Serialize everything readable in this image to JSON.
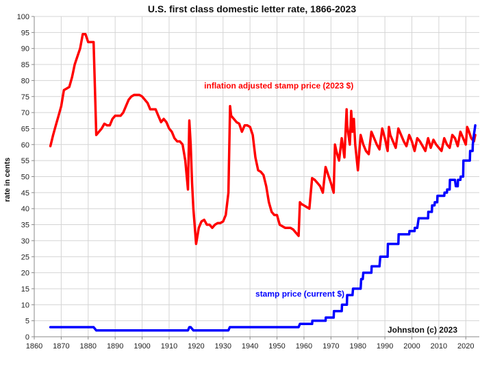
{
  "chart_data": {
    "type": "line",
    "title": "U.S. first class domestic letter rate, 1866-2023",
    "xlabel": "",
    "ylabel": "rate in cents",
    "xlim": [
      1860,
      2025
    ],
    "ylim": [
      0,
      100
    ],
    "xticks": [
      1860,
      1870,
      1880,
      1890,
      1900,
      1910,
      1920,
      1930,
      1940,
      1950,
      1960,
      1970,
      1980,
      1990,
      2000,
      2010,
      2020
    ],
    "yticks": [
      0,
      5,
      10,
      15,
      20,
      25,
      30,
      35,
      40,
      45,
      50,
      55,
      60,
      65,
      70,
      75,
      80,
      85,
      90,
      95,
      100
    ],
    "grid": true,
    "credit": "Johnston (c) 2023",
    "series": [
      {
        "name": "inflation adjusted stamp price (2023 $)",
        "color": "#ff0000",
        "label_anchor": [
          1923,
          77.5
        ],
        "points": [
          [
            1866,
            59.5
          ],
          [
            1867,
            63
          ],
          [
            1868,
            66
          ],
          [
            1869,
            69
          ],
          [
            1870,
            72
          ],
          [
            1871,
            77
          ],
          [
            1872,
            77.5
          ],
          [
            1873,
            78
          ],
          [
            1874,
            81
          ],
          [
            1875,
            85
          ],
          [
            1876,
            87.5
          ],
          [
            1877,
            90
          ],
          [
            1878,
            94.5
          ],
          [
            1879,
            94.5
          ],
          [
            1880,
            92
          ],
          [
            1881,
            92
          ],
          [
            1882,
            92
          ],
          [
            1883,
            63
          ],
          [
            1884,
            64
          ],
          [
            1885,
            65
          ],
          [
            1886,
            66.5
          ],
          [
            1887,
            66
          ],
          [
            1888,
            66
          ],
          [
            1889,
            68
          ],
          [
            1890,
            69
          ],
          [
            1891,
            69
          ],
          [
            1892,
            69
          ],
          [
            1893,
            70
          ],
          [
            1894,
            72
          ],
          [
            1895,
            74
          ],
          [
            1896,
            75
          ],
          [
            1897,
            75.5
          ],
          [
            1898,
            75.5
          ],
          [
            1899,
            75.5
          ],
          [
            1900,
            75
          ],
          [
            1901,
            74
          ],
          [
            1902,
            73
          ],
          [
            1903,
            71
          ],
          [
            1904,
            71
          ],
          [
            1905,
            71
          ],
          [
            1906,
            69
          ],
          [
            1907,
            67
          ],
          [
            1908,
            68
          ],
          [
            1909,
            67
          ],
          [
            1910,
            65
          ],
          [
            1911,
            64
          ],
          [
            1912,
            62
          ],
          [
            1913,
            61
          ],
          [
            1914,
            61
          ],
          [
            1915,
            60
          ],
          [
            1916,
            55
          ],
          [
            1917,
            46
          ],
          [
            1917.5,
            67.5
          ],
          [
            1918,
            60
          ],
          [
            1918.5,
            48
          ],
          [
            1919,
            40
          ],
          [
            1920,
            29
          ],
          [
            1921,
            34
          ],
          [
            1922,
            36
          ],
          [
            1923,
            36.5
          ],
          [
            1924,
            35
          ],
          [
            1925,
            35
          ],
          [
            1926,
            34
          ],
          [
            1927,
            35
          ],
          [
            1928,
            35.5
          ],
          [
            1929,
            35.5
          ],
          [
            1930,
            36
          ],
          [
            1931,
            38
          ],
          [
            1932,
            45
          ],
          [
            1932.6,
            72
          ],
          [
            1933,
            69
          ],
          [
            1934,
            68
          ],
          [
            1935,
            67
          ],
          [
            1936,
            66.5
          ],
          [
            1937,
            64
          ],
          [
            1938,
            66
          ],
          [
            1939,
            66
          ],
          [
            1940,
            65.5
          ],
          [
            1941,
            63
          ],
          [
            1942,
            56
          ],
          [
            1943,
            52
          ],
          [
            1944,
            51.5
          ],
          [
            1945,
            50.5
          ],
          [
            1946,
            47
          ],
          [
            1947,
            42
          ],
          [
            1948,
            39
          ],
          [
            1949,
            38
          ],
          [
            1950,
            38
          ],
          [
            1951,
            35
          ],
          [
            1952,
            34.5
          ],
          [
            1953,
            34
          ],
          [
            1954,
            34
          ],
          [
            1955,
            34
          ],
          [
            1956,
            33.5
          ],
          [
            1957,
            32.5
          ],
          [
            1958,
            31.5
          ],
          [
            1958.5,
            42
          ],
          [
            1959,
            41.5
          ],
          [
            1960,
            41
          ],
          [
            1961,
            40.5
          ],
          [
            1962,
            40
          ],
          [
            1963,
            49.5
          ],
          [
            1964,
            49
          ],
          [
            1965,
            48
          ],
          [
            1966,
            47
          ],
          [
            1967,
            45
          ],
          [
            1968,
            53
          ],
          [
            1969,
            50.5
          ],
          [
            1970,
            48
          ],
          [
            1971,
            45
          ],
          [
            1971.5,
            60
          ],
          [
            1972,
            58
          ],
          [
            1973,
            55
          ],
          [
            1974,
            62
          ],
          [
            1975,
            56
          ],
          [
            1975.8,
            71
          ],
          [
            1976,
            66
          ],
          [
            1977,
            60
          ],
          [
            1977.5,
            70.5
          ],
          [
            1978,
            64
          ],
          [
            1978.5,
            68
          ],
          [
            1979,
            60
          ],
          [
            1980,
            52
          ],
          [
            1981,
            63
          ],
          [
            1982,
            60
          ],
          [
            1983,
            58
          ],
          [
            1984,
            57
          ],
          [
            1985,
            64
          ],
          [
            1986,
            62
          ],
          [
            1987,
            60
          ],
          [
            1988,
            58.5
          ],
          [
            1989,
            65
          ],
          [
            1990,
            62
          ],
          [
            1991,
            58
          ],
          [
            1991.5,
            65.5
          ],
          [
            1992,
            63
          ],
          [
            1993,
            61
          ],
          [
            1994,
            59
          ],
          [
            1995,
            65
          ],
          [
            1996,
            63
          ],
          [
            1997,
            61
          ],
          [
            1998,
            59.5
          ],
          [
            1999,
            63
          ],
          [
            2000,
            61
          ],
          [
            2001,
            58
          ],
          [
            2002,
            62
          ],
          [
            2003,
            61
          ],
          [
            2004,
            59.5
          ],
          [
            2005,
            58
          ],
          [
            2006,
            62
          ],
          [
            2007,
            59
          ],
          [
            2008,
            61.5
          ],
          [
            2009,
            60
          ],
          [
            2010,
            59
          ],
          [
            2011,
            58
          ],
          [
            2012,
            62
          ],
          [
            2013,
            60
          ],
          [
            2014,
            59
          ],
          [
            2015,
            63
          ],
          [
            2016,
            62
          ],
          [
            2017,
            59.5
          ],
          [
            2018,
            64
          ],
          [
            2019,
            62
          ],
          [
            2020,
            60
          ],
          [
            2020.5,
            65.5
          ],
          [
            2021,
            64.5
          ],
          [
            2022,
            62
          ],
          [
            2023,
            61
          ],
          [
            2023.5,
            63
          ]
        ]
      },
      {
        "name": "stamp price (current $)",
        "color": "#0000ff",
        "label_anchor": [
          1942,
          12.5
        ],
        "points": [
          [
            1866,
            3
          ],
          [
            1882,
            3
          ],
          [
            1883,
            2
          ],
          [
            1917,
            2
          ],
          [
            1917.5,
            3
          ],
          [
            1918,
            3
          ],
          [
            1919,
            2
          ],
          [
            1932,
            2
          ],
          [
            1932.5,
            3
          ],
          [
            1958,
            3
          ],
          [
            1958.5,
            4
          ],
          [
            1963,
            4
          ],
          [
            1963.1,
            5
          ],
          [
            1968,
            5
          ],
          [
            1968.1,
            6
          ],
          [
            1971,
            6
          ],
          [
            1971.1,
            8
          ],
          [
            1974,
            8
          ],
          [
            1974.1,
            10
          ],
          [
            1975,
            10
          ],
          [
            1975.9,
            10
          ],
          [
            1976,
            13
          ],
          [
            1978,
            13
          ],
          [
            1978.2,
            15
          ],
          [
            1981,
            15
          ],
          [
            1981.2,
            18
          ],
          [
            1981.8,
            18
          ],
          [
            1982,
            20
          ],
          [
            1985,
            20
          ],
          [
            1985.1,
            22
          ],
          [
            1988,
            22
          ],
          [
            1988.3,
            25
          ],
          [
            1991,
            25
          ],
          [
            1991.1,
            29
          ],
          [
            1995,
            29
          ],
          [
            1995.1,
            32
          ],
          [
            1999,
            32
          ],
          [
            1999.1,
            33
          ],
          [
            2001,
            33
          ],
          [
            2001.1,
            34
          ],
          [
            2002,
            34
          ],
          [
            2002.5,
            37
          ],
          [
            2006,
            37
          ],
          [
            2006.1,
            39
          ],
          [
            2007.4,
            39
          ],
          [
            2007.5,
            41
          ],
          [
            2008.4,
            41
          ],
          [
            2008.5,
            42
          ],
          [
            2009.4,
            42
          ],
          [
            2009.5,
            44
          ],
          [
            2012,
            44
          ],
          [
            2012.1,
            45
          ],
          [
            2013,
            45
          ],
          [
            2013.1,
            46
          ],
          [
            2014,
            46
          ],
          [
            2014.1,
            49
          ],
          [
            2016,
            49
          ],
          [
            2016.3,
            47
          ],
          [
            2017,
            47
          ],
          [
            2017.1,
            49
          ],
          [
            2018,
            49
          ],
          [
            2018.1,
            50
          ],
          [
            2019,
            50
          ],
          [
            2019.1,
            55
          ],
          [
            2021.5,
            55
          ],
          [
            2021.6,
            58
          ],
          [
            2022.5,
            58
          ],
          [
            2022.6,
            60
          ],
          [
            2023,
            63
          ],
          [
            2023.5,
            66
          ]
        ]
      }
    ]
  }
}
